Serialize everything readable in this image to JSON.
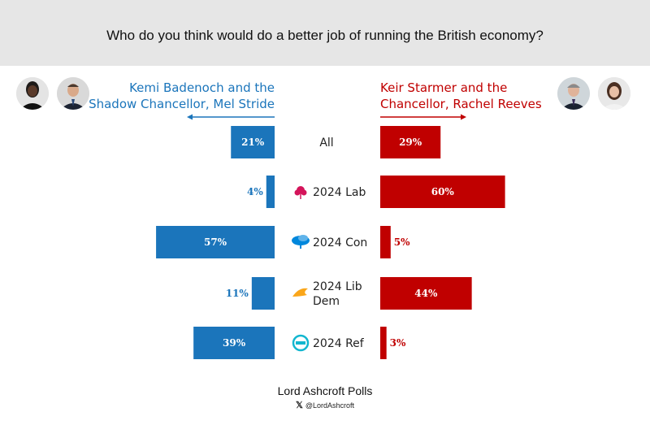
{
  "question": "Who do you think would do a better job of running the British economy?",
  "left_title_line1": "Kemi Badenoch and the",
  "left_title_line2": "Shadow Chancellor, Mel Stride",
  "right_title_line1": "Keir Starmer and the",
  "right_title_line2": "Chancellor, Rachel Reeves",
  "footer_title": "Lord Ashcroft Polls",
  "footer_handle": "@LordAshcroft",
  "colors": {
    "left": "#1b75bb",
    "right": "#c00000"
  },
  "chart_data": {
    "type": "bar",
    "categories": [
      "All",
      "2024 Lab",
      "2024 Con",
      "2024 Lib Dem",
      "2024 Ref"
    ],
    "category_icons": [
      "",
      "labour-rose-icon",
      "conservative-tree-icon",
      "libdem-bird-icon",
      "reform-logo-icon"
    ],
    "series": [
      {
        "name": "Kemi Badenoch and the Shadow Chancellor, Mel Stride",
        "values": [
          21,
          4,
          57,
          11,
          39
        ],
        "color": "#1b75bb"
      },
      {
        "name": "Keir Starmer and the Chancellor, Rachel Reeves",
        "values": [
          29,
          60,
          5,
          44,
          3
        ],
        "color": "#c00000"
      }
    ],
    "unit": "%"
  }
}
